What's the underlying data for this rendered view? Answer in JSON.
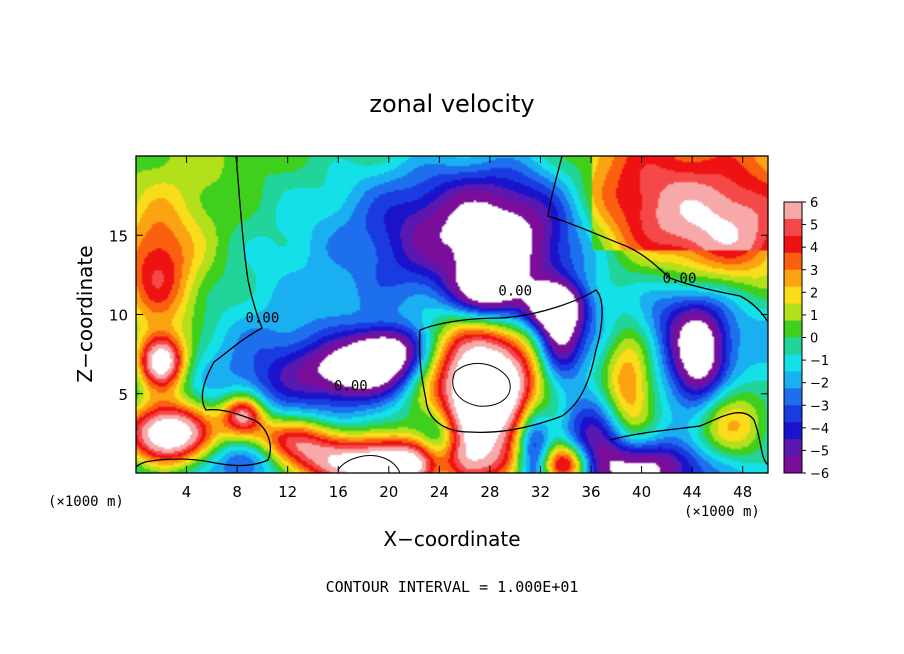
{
  "chart_data": {
    "type": "heatmap",
    "title": "zonal velocity",
    "xlabel": "X−coordinate",
    "ylabel": "Z−coordinate",
    "x_unit_left": "(×1000 m)",
    "x_unit_right": "(×1000 m)",
    "footer": "CONTOUR INTERVAL = 1.000E+01",
    "xlim": [
      0,
      50
    ],
    "ylim": [
      0,
      20
    ],
    "xticks": [
      4,
      8,
      12,
      16,
      20,
      24,
      28,
      32,
      36,
      40,
      44,
      48
    ],
    "yticks": [
      5,
      10,
      15
    ],
    "colorbar": {
      "range": [
        -6,
        6
      ],
      "ticks": [
        6,
        5,
        4,
        3,
        2,
        1,
        0,
        -1,
        -2,
        -3,
        -4,
        -5,
        -6
      ],
      "tick_labels": [
        "6",
        "5",
        "4",
        "3",
        "2",
        "1",
        "0",
        "−1",
        "−2",
        "−3",
        "−4",
        "−5",
        "−6"
      ],
      "colors": [
        "#f7a8a8",
        "#f54848",
        "#ee1212",
        "#fb6010",
        "#fca311",
        "#f9dd1b",
        "#b3e01b",
        "#3ed01d",
        "#20d49a",
        "#14e0e8",
        "#1aaff0",
        "#1d6fee",
        "#1a3be0",
        "#1b13cc",
        "#5a18b0",
        "#7a0d9a"
      ]
    },
    "contour_labels": [
      {
        "text": "0.00",
        "x": 43,
        "y": 12
      },
      {
        "text": "0.00",
        "x": 10,
        "y": 9.5
      },
      {
        "text": "0.00",
        "x": 17,
        "y": 5.2
      },
      {
        "text": "0.00",
        "x": 30,
        "y": 11.2
      }
    ],
    "features": [
      {
        "x": 1.5,
        "y": 12.5,
        "value": 5.0,
        "sx": 2.2,
        "sy": 3.2
      },
      {
        "x": 47,
        "y": 15,
        "value": 5.0,
        "sx": 4,
        "sy": 3
      },
      {
        "x": 40,
        "y": 17,
        "value": 3.2,
        "sx": 4,
        "sy": 3
      },
      {
        "x": 5,
        "y": 14,
        "value": 1.2,
        "sx": 3,
        "sy": 6
      },
      {
        "x": 25,
        "y": 15.5,
        "value": -4.5,
        "sx": 6,
        "sy": 3
      },
      {
        "x": 30,
        "y": 15,
        "value": -3.5,
        "sx": 4,
        "sy": 3
      },
      {
        "x": 28,
        "y": 11.5,
        "value": -6.5,
        "sx": 2,
        "sy": 1.3
      },
      {
        "x": 33,
        "y": 10.5,
        "value": -6.5,
        "sx": 1.6,
        "sy": 1
      },
      {
        "x": 33.5,
        "y": 8.5,
        "value": -6.0,
        "sx": 1.2,
        "sy": 1.6
      },
      {
        "x": 44.5,
        "y": 7,
        "value": -6.0,
        "sx": 1.4,
        "sy": 2
      },
      {
        "x": 44,
        "y": 10,
        "value": -3.0,
        "sx": 3,
        "sy": 2
      },
      {
        "x": 18,
        "y": 6.5,
        "value": -6.0,
        "sx": 3,
        "sy": 1.2
      },
      {
        "x": 20,
        "y": 7.8,
        "value": -5.0,
        "sx": 2,
        "sy": 1
      },
      {
        "x": 27.5,
        "y": 5.2,
        "value": 12.0,
        "sx": 3.3,
        "sy": 3.3
      },
      {
        "x": 20,
        "y": 0.5,
        "value": 10.0,
        "sx": 5,
        "sy": 1.2
      },
      {
        "x": 2.5,
        "y": 2.5,
        "value": 10.0,
        "sx": 2.5,
        "sy": 1.4
      },
      {
        "x": 2,
        "y": 7,
        "value": 8.0,
        "sx": 1.3,
        "sy": 1.2
      },
      {
        "x": 8.5,
        "y": 3.7,
        "value": 7.0,
        "sx": 1.2,
        "sy": 0.9
      },
      {
        "x": 39,
        "y": 5.5,
        "value": 5.0,
        "sx": 1.5,
        "sy": 2.8
      },
      {
        "x": 40,
        "y": 0.3,
        "value": -5.0,
        "sx": 4,
        "sy": 1.2
      },
      {
        "x": 36,
        "y": 2,
        "value": -3.5,
        "sx": 2,
        "sy": 2
      },
      {
        "x": 12,
        "y": 2,
        "value": 6.0,
        "sx": 3,
        "sy": 1.1
      },
      {
        "x": 9,
        "y": 1,
        "value": -4.0,
        "sx": 2,
        "sy": 1
      },
      {
        "x": 24,
        "y": 1.2,
        "value": -5.0,
        "sx": 1.2,
        "sy": 2
      },
      {
        "x": 31.5,
        "y": 1.5,
        "value": -5.5,
        "sx": 1,
        "sy": 2
      },
      {
        "x": 34,
        "y": 0.5,
        "value": 9.0,
        "sx": 1.5,
        "sy": 1
      },
      {
        "x": 47,
        "y": 3,
        "value": 4.0,
        "sx": 2.5,
        "sy": 2
      },
      {
        "x": 12,
        "y": 6,
        "value": -2.0,
        "sx": 4,
        "sy": 2
      }
    ]
  }
}
